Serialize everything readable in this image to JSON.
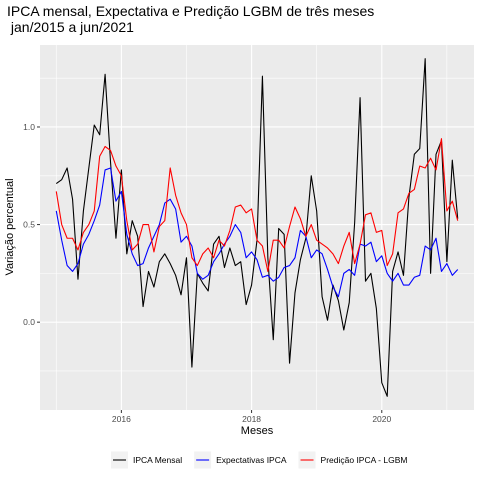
{
  "chart_data": {
    "type": "line",
    "title": "IPCA mensal, Expectativa e Predição LGBM de três meses",
    "subtitle": " jan/2015 a jun/2021",
    "xlabel": "Meses",
    "ylabel": "Variação percentual",
    "x_start": "2015-01",
    "x_tick_labels": [
      "2016",
      "2018",
      "2020"
    ],
    "x_tick_dates": [
      "2016-01",
      "2018-01",
      "2020-01"
    ],
    "y_tick_labels": [
      "0.0",
      "0.5",
      "1.0"
    ],
    "y_ticks": [
      0.0,
      0.5,
      1.0
    ],
    "ylim": [
      -0.45,
      1.42
    ],
    "xlim": [
      "2014-10",
      "2021-06"
    ],
    "grid": true,
    "legend_position": "bottom",
    "series": [
      {
        "name": "IPCA Mensal",
        "color": "#000000",
        "values": [
          0.71,
          0.73,
          0.79,
          0.63,
          0.22,
          0.57,
          0.79,
          1.01,
          0.96,
          1.27,
          0.82,
          0.43,
          0.78,
          0.35,
          0.52,
          0.44,
          0.08,
          0.26,
          0.18,
          0.31,
          0.35,
          0.3,
          0.24,
          0.14,
          0.33,
          -0.23,
          0.25,
          0.2,
          0.16,
          0.4,
          0.44,
          0.28,
          0.38,
          0.29,
          0.31,
          0.09,
          0.19,
          0.42,
          1.26,
          0.33,
          -0.09,
          0.48,
          0.45,
          -0.21,
          0.15,
          0.32,
          0.43,
          0.75,
          0.57,
          0.13,
          0.01,
          0.19,
          0.11,
          -0.04,
          0.1,
          0.51,
          1.15,
          0.21,
          0.25,
          0.07,
          -0.31,
          -0.38,
          0.26,
          0.36,
          0.24,
          0.64,
          0.86,
          0.89,
          1.35,
          0.25,
          0.86,
          0.93,
          0.31,
          0.83,
          0.53
        ]
      },
      {
        "name": "Expectativas IPCA",
        "color": "#0000ff",
        "values": [
          0.57,
          0.42,
          0.29,
          0.26,
          0.3,
          0.4,
          0.45,
          0.52,
          0.6,
          0.78,
          0.79,
          0.62,
          0.67,
          0.45,
          0.35,
          0.29,
          0.3,
          0.38,
          0.44,
          0.5,
          0.61,
          0.63,
          0.58,
          0.41,
          0.44,
          0.39,
          0.25,
          0.22,
          0.24,
          0.31,
          0.35,
          0.4,
          0.44,
          0.5,
          0.46,
          0.33,
          0.36,
          0.32,
          0.23,
          0.24,
          0.21,
          0.23,
          0.28,
          0.29,
          0.33,
          0.47,
          0.44,
          0.33,
          0.37,
          0.35,
          0.27,
          0.18,
          0.13,
          0.25,
          0.27,
          0.24,
          0.4,
          0.39,
          0.41,
          0.31,
          0.34,
          0.25,
          0.21,
          0.25,
          0.19,
          0.19,
          0.23,
          0.24,
          0.39,
          0.37,
          0.43,
          0.26,
          0.3,
          0.24,
          0.27
        ]
      },
      {
        "name": "Predição IPCA - LGBM",
        "color": "#ff0000",
        "values": [
          0.67,
          0.5,
          0.43,
          0.43,
          0.37,
          0.46,
          0.5,
          0.57,
          0.85,
          0.9,
          0.88,
          0.8,
          0.75,
          0.52,
          0.37,
          0.4,
          0.5,
          0.5,
          0.36,
          0.49,
          0.52,
          0.79,
          0.65,
          0.56,
          0.5,
          0.33,
          0.29,
          0.35,
          0.38,
          0.33,
          0.42,
          0.39,
          0.47,
          0.59,
          0.6,
          0.56,
          0.58,
          0.42,
          0.39,
          0.26,
          0.42,
          0.42,
          0.38,
          0.49,
          0.59,
          0.53,
          0.44,
          0.5,
          0.42,
          0.4,
          0.38,
          0.35,
          0.3,
          0.39,
          0.46,
          0.3,
          0.4,
          0.55,
          0.56,
          0.46,
          0.47,
          0.29,
          0.35,
          0.56,
          0.58,
          0.66,
          0.68,
          0.8,
          0.79,
          0.84,
          0.78,
          0.94,
          0.57,
          0.62,
          0.52
        ]
      }
    ]
  }
}
